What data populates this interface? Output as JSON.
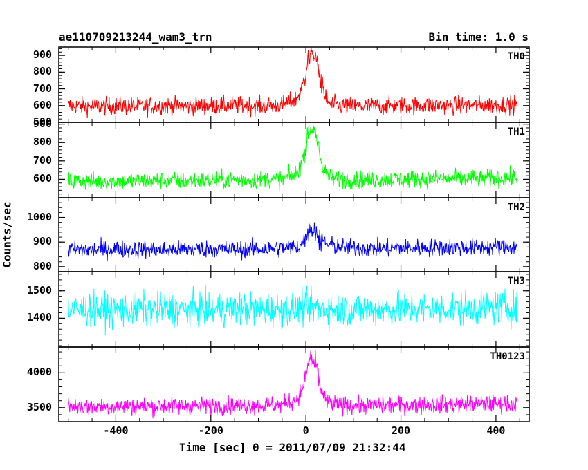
{
  "chart_data": {
    "type": "line",
    "title": "ae110709213244_wam3_trn",
    "subtitle": "Bin time: 1.0 s",
    "xlabel": "Time [sec] 0 = 2011/07/09 21:32:44",
    "ylabel": "Counts/sec",
    "xlim": [
      -520,
      470
    ],
    "xticks": [
      -400,
      -200,
      0,
      200,
      400
    ],
    "grid": false,
    "panels": [
      {
        "name": "TH0",
        "color": "#ff0000",
        "ylim": [
          500,
          950
        ],
        "yticks": [
          500,
          600,
          700,
          800,
          900
        ],
        "x": [
          -500,
          -450,
          -400,
          -350,
          -300,
          -250,
          -200,
          -150,
          -100,
          -50,
          -20,
          -10,
          0,
          5,
          10,
          15,
          20,
          25,
          30,
          40,
          50,
          75,
          100,
          150,
          200,
          250,
          300,
          350,
          400,
          445
        ],
        "values": [
          600,
          595,
          598,
          596,
          600,
          597,
          599,
          601,
          598,
          602,
          640,
          690,
          800,
          870,
          920,
          900,
          890,
          850,
          760,
          650,
          610,
          600,
          598,
          596,
          600,
          602,
          599,
          601,
          603,
          605
        ]
      },
      {
        "name": "TH1",
        "color": "#00ff00",
        "ylim": [
          500,
          910
        ],
        "yticks": [
          600,
          700,
          800,
          900
        ],
        "x": [
          -500,
          -450,
          -400,
          -350,
          -300,
          -250,
          -200,
          -150,
          -100,
          -50,
          -20,
          -10,
          0,
          5,
          10,
          15,
          20,
          25,
          30,
          40,
          50,
          75,
          100,
          150,
          200,
          250,
          300,
          350,
          400,
          445
        ],
        "values": [
          590,
          588,
          592,
          590,
          594,
          592,
          596,
          597,
          598,
          600,
          630,
          680,
          780,
          850,
          880,
          860,
          840,
          800,
          720,
          640,
          610,
          600,
          598,
          597,
          600,
          603,
          602,
          604,
          606,
          608
        ]
      },
      {
        "name": "TH2",
        "color": "#0000ff",
        "ylim": [
          780,
          1080
        ],
        "yticks": [
          800,
          900,
          1000
        ],
        "x": [
          -500,
          -450,
          -400,
          -350,
          -300,
          -250,
          -200,
          -150,
          -100,
          -50,
          -20,
          -10,
          0,
          5,
          10,
          15,
          20,
          25,
          30,
          40,
          50,
          75,
          100,
          150,
          200,
          250,
          300,
          350,
          400,
          445
        ],
        "values": [
          870,
          868,
          872,
          870,
          868,
          871,
          873,
          870,
          872,
          875,
          880,
          890,
          930,
          950,
          955,
          945,
          940,
          930,
          910,
          895,
          888,
          880,
          876,
          874,
          875,
          877,
          879,
          878,
          880,
          882
        ]
      },
      {
        "name": "TH3",
        "color": "#00ffff",
        "ylim": [
          1295,
          1570
        ],
        "yticks": [
          1400,
          1500
        ],
        "x": [
          -500,
          -450,
          -400,
          -350,
          -300,
          -250,
          -200,
          -150,
          -100,
          -50,
          -20,
          -10,
          0,
          5,
          10,
          15,
          20,
          25,
          30,
          40,
          50,
          75,
          100,
          150,
          200,
          250,
          300,
          350,
          400,
          445
        ],
        "values": [
          1430,
          1432,
          1428,
          1431,
          1433,
          1430,
          1429,
          1432,
          1434,
          1431,
          1433,
          1435,
          1438,
          1440,
          1441,
          1440,
          1439,
          1437,
          1435,
          1433,
          1432,
          1431,
          1433,
          1432,
          1434,
          1433,
          1435,
          1436,
          1438,
          1437
        ]
      },
      {
        "name": "TH0123",
        "color": "#ff00ff",
        "ylim": [
          3300,
          4370
        ],
        "yticks": [
          3500,
          4000
        ],
        "x": [
          -500,
          -450,
          -400,
          -350,
          -300,
          -250,
          -200,
          -150,
          -100,
          -50,
          -20,
          -10,
          0,
          5,
          10,
          15,
          20,
          25,
          30,
          40,
          50,
          75,
          100,
          150,
          200,
          250,
          300,
          350,
          400,
          445
        ],
        "values": [
          3520,
          3515,
          3522,
          3518,
          3525,
          3522,
          3528,
          3530,
          3532,
          3540,
          3620,
          3720,
          3980,
          4120,
          4200,
          4150,
          4100,
          4000,
          3800,
          3620,
          3560,
          3540,
          3530,
          3528,
          3535,
          3540,
          3545,
          3550,
          3555,
          3560
        ]
      }
    ]
  }
}
